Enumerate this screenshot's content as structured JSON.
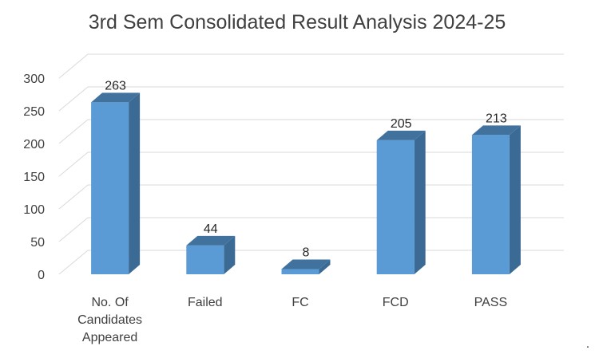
{
  "chart_data": {
    "type": "bar",
    "title": "3rd Sem Consolidated Result Analysis 2024-25",
    "categories": [
      [
        "No. Of",
        "Candidates",
        "Appeared"
      ],
      [
        "Failed"
      ],
      [
        "FC"
      ],
      [
        "FCD"
      ],
      [
        "PASS"
      ]
    ],
    "values": [
      263,
      44,
      8,
      205,
      213
    ],
    "ylim": [
      0,
      300
    ],
    "yticks": [
      "0",
      "50",
      "100",
      "150",
      "200",
      "250",
      "300"
    ],
    "grid": true,
    "style": "3d-column",
    "colors": {
      "front": "#5b9bd5",
      "side": "#3b6a94",
      "top": "#41729e"
    }
  },
  "footer_mark": "."
}
